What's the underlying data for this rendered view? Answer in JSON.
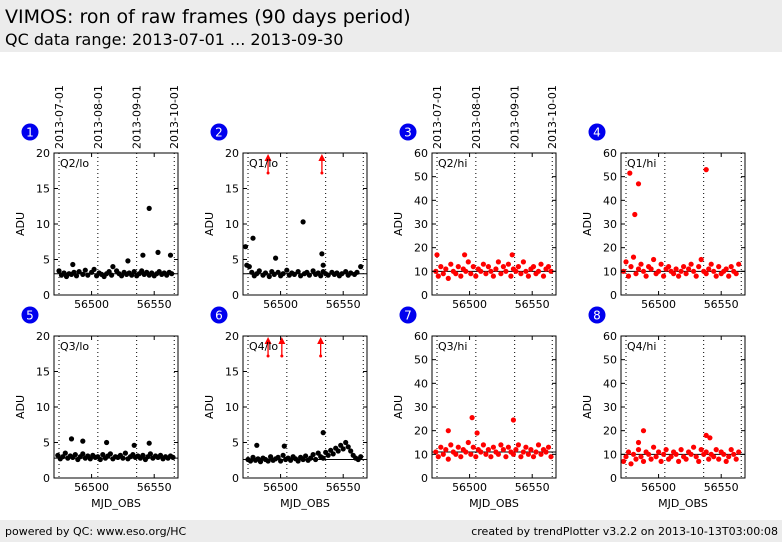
{
  "header": {
    "title": "VIMOS: ron of raw frames (90 days period)",
    "subtitle": "QC data range: 2013-07-01 ... 2013-09-30"
  },
  "footer": {
    "left": "powered by QC: www.eso.org/HC",
    "right": "created by trendPlotter v3.2.2 on 2013-10-13T03:00:08"
  },
  "colors": {
    "black_series": "#000000",
    "red_series": "#ff0000",
    "badge": "#0000ee",
    "band": "#ececec"
  },
  "date_axis": {
    "labels": [
      "2013-07-01",
      "2013-08-01",
      "2013-09-01",
      "2013-10-01"
    ],
    "mjd": [
      56474,
      56505,
      56536,
      56566
    ]
  },
  "chart_data": [
    {
      "type": "scatter",
      "panel": "1",
      "label": "Q2/lo",
      "color": "#000000",
      "xlabel": "",
      "ylabel": "ADU",
      "xlim": [
        56470,
        56569
      ],
      "ylim": [
        0,
        20
      ],
      "yticks": [
        0,
        5,
        10,
        15,
        20
      ],
      "xticks": [
        56500,
        56550
      ],
      "reference": 3.0,
      "x": [
        56474,
        56476,
        56478,
        56480,
        56482,
        56484,
        56486,
        56488,
        56490,
        56493,
        56495,
        56497,
        56500,
        56502,
        56504,
        56506,
        56508,
        56510,
        56512,
        56514,
        56516,
        56520,
        56522,
        56524,
        56526,
        56528,
        56530,
        56532,
        56534,
        56536,
        56538,
        56540,
        56542,
        56544,
        56546,
        56548,
        56550,
        56552,
        56554,
        56556,
        56558,
        56560,
        56562,
        56564,
        56485,
        56517,
        56529,
        56541,
        56546,
        56553,
        56563
      ],
      "y": [
        3.4,
        2.8,
        3.1,
        2.6,
        3.0,
        2.9,
        3.2,
        2.7,
        3.3,
        2.9,
        3.5,
        2.8,
        3.2,
        3.6,
        2.7,
        3.1,
        2.9,
        2.6,
        3.0,
        3.3,
        2.8,
        3.4,
        3.0,
        2.7,
        3.2,
        2.9,
        3.1,
        2.8,
        3.3,
        2.7,
        3.0,
        3.4,
        2.9,
        3.2,
        2.8,
        3.1,
        2.7,
        3.0,
        3.3,
        2.9,
        3.1,
        2.8,
        3.2,
        3.0,
        4.3,
        4.0,
        4.8,
        5.6,
        12.2,
        6.0,
        5.6
      ],
      "arrows": []
    },
    {
      "type": "scatter",
      "panel": "2",
      "label": "Q1/lo",
      "color": "#000000",
      "xlabel": "",
      "ylabel": "ADU",
      "xlim": [
        56470,
        56569
      ],
      "ylim": [
        0,
        20
      ],
      "yticks": [
        0,
        5,
        10,
        15,
        20
      ],
      "xticks": [
        56500,
        56550
      ],
      "reference": 3.0,
      "x": [
        56472,
        56475,
        56477,
        56479,
        56481,
        56483,
        56486,
        56488,
        56491,
        56493,
        56495,
        56498,
        56500,
        56502,
        56505,
        56507,
        56509,
        56511,
        56514,
        56516,
        56519,
        56521,
        56523,
        56526,
        56528,
        56530,
        56532,
        56534,
        56536,
        56538,
        56541,
        56543,
        56545,
        56547,
        56549,
        56552,
        56554,
        56556,
        56559,
        56561,
        56564,
        56473,
        56478,
        56496,
        56518,
        56533,
        56534
      ],
      "y": [
        6.8,
        4.0,
        3.2,
        2.7,
        3.0,
        3.4,
        2.8,
        3.1,
        2.6,
        3.3,
        2.9,
        3.2,
        2.7,
        3.0,
        3.5,
        2.8,
        3.1,
        2.9,
        3.3,
        2.7,
        3.0,
        3.2,
        2.8,
        3.4,
        2.9,
        3.1,
        2.7,
        3.3,
        3.0,
        2.8,
        3.2,
        2.9,
        3.1,
        2.7,
        3.0,
        3.3,
        2.8,
        3.1,
        2.9,
        3.2,
        4.0,
        4.2,
        8.0,
        5.2,
        10.3,
        5.8,
        4.2
      ],
      "arrows": [
        56490,
        56533
      ]
    },
    {
      "type": "scatter",
      "panel": "3",
      "label": "Q2/hi",
      "color": "#ff0000",
      "xlabel": "",
      "ylabel": "ADU",
      "xlim": [
        56470,
        56569
      ],
      "ylim": [
        0,
        60
      ],
      "yticks": [
        0,
        10,
        20,
        30,
        40,
        50,
        60
      ],
      "xticks": [
        56500,
        56550
      ],
      "reference": 10.0,
      "x": [
        56473,
        56475,
        56477,
        56479,
        56481,
        56483,
        56485,
        56487,
        56489,
        56491,
        56493,
        56495,
        56497,
        56499,
        56501,
        56503,
        56505,
        56507,
        56509,
        56511,
        56513,
        56515,
        56517,
        56519,
        56521,
        56523,
        56525,
        56527,
        56529,
        56531,
        56533,
        56535,
        56537,
        56539,
        56541,
        56543,
        56545,
        56547,
        56549,
        56551,
        56553,
        56555,
        56557,
        56559,
        56561,
        56563,
        56565,
        56474,
        56496,
        56534
      ],
      "y": [
        10,
        8,
        12,
        9,
        11,
        7,
        13,
        10,
        9,
        12,
        8,
        11,
        10,
        14,
        9,
        12,
        8,
        11,
        10,
        13,
        9,
        12,
        10,
        8,
        11,
        14,
        9,
        12,
        10,
        13,
        8,
        11,
        10,
        12,
        9,
        14,
        10,
        8,
        11,
        12,
        9,
        10,
        13,
        8,
        11,
        12,
        10,
        17,
        17,
        17
      ],
      "arrows": []
    },
    {
      "type": "scatter",
      "panel": "4",
      "label": "Q1/hi",
      "color": "#ff0000",
      "xlabel": "",
      "ylabel": "ADU",
      "xlim": [
        56470,
        56569
      ],
      "ylim": [
        0,
        60
      ],
      "yticks": [
        0,
        10,
        20,
        30,
        40,
        50,
        60
      ],
      "xticks": [
        56500,
        56550
      ],
      "reference": 10.0,
      "x": [
        56472,
        56474,
        56476,
        56478,
        56480,
        56482,
        56484,
        56486,
        56488,
        56490,
        56492,
        56494,
        56496,
        56498,
        56500,
        56502,
        56504,
        56506,
        56508,
        56510,
        56512,
        56514,
        56516,
        56518,
        56520,
        56522,
        56524,
        56526,
        56528,
        56530,
        56532,
        56534,
        56536,
        56538,
        56540,
        56542,
        56544,
        56546,
        56548,
        56550,
        56552,
        56554,
        56556,
        56558,
        56560,
        56562,
        56564,
        56477,
        56481,
        56484,
        56538
      ],
      "y": [
        10,
        14,
        8,
        12,
        16,
        9,
        11,
        13,
        10,
        8,
        12,
        11,
        15,
        9,
        10,
        13,
        8,
        11,
        12,
        10,
        9,
        11,
        8,
        10,
        12,
        9,
        11,
        13,
        10,
        8,
        12,
        15,
        10,
        9,
        11,
        13,
        10,
        8,
        12,
        9,
        10,
        11,
        8,
        12,
        10,
        9,
        13,
        51.5,
        34,
        47,
        53
      ],
      "arrows": []
    },
    {
      "type": "scatter",
      "panel": "5",
      "label": "Q3/lo",
      "color": "#000000",
      "xlabel": "MJD_OBS",
      "ylabel": "ADU",
      "xlim": [
        56470,
        56569
      ],
      "ylim": [
        0,
        20
      ],
      "yticks": [
        0,
        5,
        10,
        15,
        20
      ],
      "xticks": [
        56500,
        56550
      ],
      "reference": 2.8,
      "x": [
        56473,
        56475,
        56477,
        56479,
        56481,
        56483,
        56485,
        56487,
        56489,
        56491,
        56493,
        56495,
        56497,
        56499,
        56501,
        56503,
        56505,
        56507,
        56509,
        56511,
        56513,
        56515,
        56517,
        56519,
        56521,
        56523,
        56525,
        56527,
        56529,
        56531,
        56533,
        56535,
        56537,
        56539,
        56541,
        56543,
        56545,
        56547,
        56549,
        56551,
        56553,
        56555,
        56557,
        56559,
        56561,
        56563,
        56565,
        56484,
        56493,
        56512,
        56534,
        56546
      ],
      "y": [
        3.2,
        2.7,
        3.0,
        3.5,
        2.8,
        3.1,
        2.9,
        3.3,
        2.6,
        3.0,
        3.4,
        2.8,
        3.1,
        2.7,
        3.2,
        2.9,
        3.0,
        2.6,
        3.3,
        2.8,
        3.1,
        3.4,
        2.7,
        3.0,
        2.9,
        3.2,
        2.8,
        3.5,
        2.7,
        3.0,
        3.3,
        2.9,
        3.1,
        2.8,
        3.2,
        2.6,
        3.0,
        3.4,
        2.8,
        3.1,
        2.9,
        3.2,
        2.7,
        3.0,
        2.8,
        3.1,
        2.9,
        5.5,
        5.2,
        5.0,
        4.6,
        4.9
      ],
      "arrows": []
    },
    {
      "type": "scatter",
      "panel": "6",
      "label": "Q4/lo",
      "color": "#000000",
      "xlabel": "MJD_OBS",
      "ylabel": "ADU",
      "xlim": [
        56470,
        56569
      ],
      "ylim": [
        0,
        20
      ],
      "yticks": [
        0,
        5,
        10,
        15,
        20
      ],
      "xticks": [
        56500,
        56550
      ],
      "reference": 2.6,
      "x": [
        56474,
        56476,
        56478,
        56480,
        56482,
        56484,
        56486,
        56488,
        56490,
        56492,
        56494,
        56496,
        56498,
        56500,
        56502,
        56504,
        56506,
        56508,
        56510,
        56512,
        56514,
        56516,
        56518,
        56520,
        56522,
        56524,
        56526,
        56528,
        56530,
        56532,
        56534,
        56536,
        56538,
        56540,
        56542,
        56544,
        56546,
        56548,
        56550,
        56552,
        56554,
        56556,
        56558,
        56560,
        56562,
        56564,
        56481,
        56503,
        56534
      ],
      "y": [
        2.6,
        2.4,
        2.9,
        2.5,
        2.7,
        2.3,
        2.8,
        2.6,
        2.4,
        3.0,
        2.5,
        2.7,
        2.9,
        2.4,
        3.2,
        2.6,
        2.8,
        2.5,
        3.0,
        2.7,
        2.4,
        2.9,
        2.6,
        3.1,
        2.5,
        2.8,
        3.3,
        2.6,
        3.5,
        3.0,
        2.8,
        3.6,
        3.2,
        3.9,
        3.4,
        4.2,
        3.8,
        4.6,
        4.1,
        5.0,
        4.4,
        3.8,
        3.2,
        2.8,
        2.6,
        3.0,
        4.6,
        4.5,
        6.4
      ],
      "arrows": [
        56490,
        56501,
        56532
      ]
    },
    {
      "type": "scatter",
      "panel": "7",
      "label": "Q3/hi",
      "color": "#ff0000",
      "xlabel": "MJD_OBS",
      "ylabel": "ADU",
      "xlim": [
        56470,
        56569
      ],
      "ylim": [
        0,
        60
      ],
      "yticks": [
        0,
        10,
        20,
        30,
        40,
        50,
        60
      ],
      "xticks": [
        56500,
        56550
      ],
      "reference": 11.0,
      "x": [
        56473,
        56475,
        56477,
        56479,
        56481,
        56483,
        56485,
        56487,
        56489,
        56491,
        56493,
        56495,
        56497,
        56499,
        56501,
        56503,
        56505,
        56507,
        56509,
        56511,
        56513,
        56515,
        56517,
        56519,
        56521,
        56523,
        56525,
        56527,
        56529,
        56531,
        56533,
        56535,
        56537,
        56539,
        56541,
        56543,
        56545,
        56547,
        56549,
        56551,
        56553,
        56555,
        56557,
        56559,
        56561,
        56563,
        56565,
        56502,
        56506,
        56535,
        56483
      ],
      "y": [
        11,
        9,
        13,
        10,
        12,
        8,
        14,
        11,
        10,
        13,
        9,
        12,
        11,
        15,
        10,
        13,
        9,
        12,
        11,
        14,
        10,
        12,
        9,
        13,
        11,
        10,
        14,
        12,
        9,
        13,
        11,
        10,
        12,
        14,
        9,
        11,
        13,
        10,
        12,
        9,
        11,
        14,
        10,
        12,
        11,
        13,
        9,
        25.5,
        19,
        24.5,
        20
      ],
      "arrows": []
    },
    {
      "type": "scatter",
      "panel": "8",
      "label": "Q4/hi",
      "color": "#ff0000",
      "xlabel": "MJD_OBS",
      "ylabel": "ADU",
      "xlim": [
        56470,
        56569
      ],
      "ylim": [
        0,
        60
      ],
      "yticks": [
        0,
        10,
        20,
        30,
        40,
        50,
        60
      ],
      "xticks": [
        56500,
        56550
      ],
      "reference": 10.0,
      "x": [
        56472,
        56474,
        56476,
        56478,
        56480,
        56482,
        56484,
        56486,
        56488,
        56490,
        56492,
        56494,
        56496,
        56498,
        56500,
        56502,
        56504,
        56506,
        56508,
        56510,
        56512,
        56514,
        56516,
        56518,
        56520,
        56522,
        56524,
        56526,
        56528,
        56530,
        56532,
        56534,
        56536,
        56538,
        56540,
        56542,
        56544,
        56546,
        56548,
        56550,
        56552,
        56554,
        56556,
        56558,
        56560,
        56562,
        56564,
        56484,
        56488,
        56538,
        56541
      ],
      "y": [
        7,
        9,
        11,
        6,
        10,
        8,
        12,
        9,
        7,
        11,
        10,
        8,
        13,
        9,
        11,
        7,
        10,
        12,
        8,
        9,
        11,
        10,
        7,
        12,
        9,
        8,
        11,
        10,
        13,
        9,
        7,
        12,
        10,
        11,
        8,
        10,
        9,
        12,
        8,
        11,
        10,
        7,
        9,
        12,
        10,
        8,
        11,
        15,
        20,
        18,
        17
      ],
      "arrows": []
    }
  ]
}
